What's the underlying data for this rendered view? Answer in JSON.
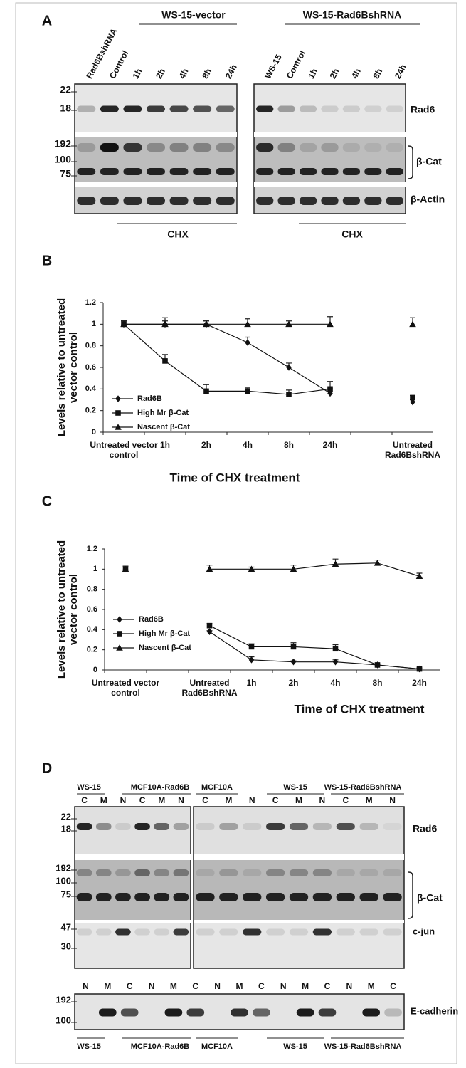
{
  "panel_a": {
    "label": "A",
    "groups": [
      "WS-15-vector",
      "WS-15-Rad6BshRNA"
    ],
    "lanes": [
      "Rad6BshRNA",
      "Control",
      "1h",
      "2h",
      "4h",
      "8h",
      "24h",
      "WS-15",
      "Control",
      "1h",
      "2h",
      "4h",
      "8h",
      "24h"
    ],
    "markers": [
      "22",
      "18",
      "192",
      "100",
      "75"
    ],
    "proteins": [
      "Rad6",
      "β-Cat",
      "β-Actin"
    ],
    "treatment": [
      "CHX",
      "CHX"
    ]
  },
  "chart_data": [
    {
      "type": "line",
      "label": "B",
      "y_label": "Levels relative to untreated vector control",
      "x_label": "Time of CHX treatment",
      "categories": [
        "Untreated vector control",
        "1h",
        "2h",
        "4h",
        "8h",
        "24h",
        null,
        "Untreated Rad6BshRNA"
      ],
      "series": [
        {
          "name": "Rad6B",
          "marker": "diamond",
          "color": "#111111",
          "values": [
            1,
            1,
            1,
            0.83,
            0.6,
            0.36,
            null,
            0.28
          ],
          "errors": [
            0.03,
            0.03,
            0.03,
            0.05,
            0.04,
            0.04,
            null,
            0.02
          ]
        },
        {
          "name": "High Mr β-Cat",
          "marker": "square",
          "color": "#111111",
          "values": [
            1,
            0.66,
            0.38,
            0.38,
            0.35,
            0.4,
            null,
            0.32
          ],
          "errors": [
            0.03,
            0.06,
            0.06,
            0.03,
            0.04,
            0.07,
            null,
            0.02
          ]
        },
        {
          "name": "Nascent β-Cat",
          "marker": "triangle",
          "color": "#111111",
          "values": [
            1,
            1,
            1,
            1,
            1,
            1,
            null,
            1
          ],
          "errors": [
            0.03,
            0.06,
            0.03,
            0.05,
            0.03,
            0.07,
            null,
            0.06
          ]
        }
      ],
      "ylim": [
        0,
        1.2
      ],
      "yticks": [
        0,
        0.2,
        0.4,
        0.6,
        0.8,
        1,
        1.2
      ],
      "legend": "lower left"
    },
    {
      "type": "line",
      "label": "C",
      "y_label": "Levels relative to untreated vector control",
      "x_label": "Time of CHX treatment",
      "categories": [
        "Untreated vector control",
        null,
        "Untreated Rad6BshRNA",
        "1h",
        "2h",
        "4h",
        "8h",
        "24h"
      ],
      "series": [
        {
          "name": "Rad6B",
          "marker": "diamond",
          "color": "#111111",
          "values": [
            1,
            null,
            0.38,
            0.1,
            0.08,
            0.08,
            0.05,
            0.01
          ],
          "errors": [
            0.03,
            null,
            0.01,
            0.03,
            0.01,
            0.02,
            0.01,
            0.01
          ]
        },
        {
          "name": "High Mr β-Cat",
          "marker": "square",
          "color": "#111111",
          "values": [
            1,
            null,
            0.44,
            0.23,
            0.23,
            0.21,
            0.05,
            0.01
          ],
          "errors": [
            0.03,
            null,
            0.02,
            0.03,
            0.04,
            0.04,
            0.01,
            0.01
          ]
        },
        {
          "name": "Nascent β-Cat",
          "marker": "triangle",
          "color": "#111111",
          "values": [
            1,
            null,
            1,
            1,
            1,
            1.05,
            1.06,
            0.93
          ],
          "errors": [
            0.03,
            null,
            0.04,
            0.02,
            0.04,
            0.05,
            0.03,
            0.03
          ]
        }
      ],
      "ylim": [
        0,
        1.2
      ],
      "yticks": [
        0,
        0.2,
        0.4,
        0.6,
        0.8,
        1,
        1.2
      ],
      "legend": "lower left"
    }
  ],
  "panel_d": {
    "label": "D",
    "groups": [
      "WS-15",
      "MCF10A-Rad6B",
      "MCF10A",
      "WS-15",
      "WS-15-Rad6BshRNA"
    ],
    "lanes": [
      "C",
      "M",
      "N",
      "C",
      "M",
      "N",
      "C",
      "M",
      "N",
      "C",
      "M",
      "N",
      "C",
      "M",
      "N"
    ],
    "markers": [
      "22",
      "18",
      "192",
      "100",
      "75",
      "47",
      "30"
    ],
    "proteins": [
      "Rad6",
      "β-Cat",
      "c-jun"
    ],
    "bottom_lanes": [
      "N",
      "M",
      "C",
      "N",
      "M",
      "C",
      "N",
      "M",
      "C",
      "N",
      "M",
      "C",
      "N",
      "M",
      "C"
    ],
    "bottom_markers": [
      "192",
      "100"
    ],
    "bottom_protein": "E-cadherin",
    "bottom_groups": [
      "WS-15",
      "MCF10A-Rad6B",
      "MCF10A",
      "WS-15",
      "WS-15-Rad6BshRNA"
    ]
  }
}
